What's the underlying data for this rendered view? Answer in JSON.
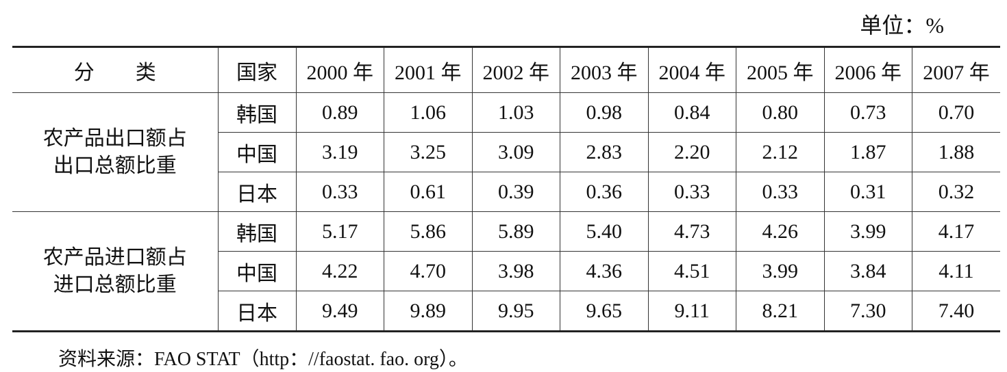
{
  "unit": "单位：%",
  "table": {
    "header": [
      "分　　类",
      "国家",
      "2000 年",
      "2001 年",
      "2002 年",
      "2003 年",
      "2004 年",
      "2005 年",
      "2006 年",
      "2007 年"
    ],
    "groups": [
      {
        "label": [
          "农产品出口额占",
          "出口总额比重"
        ],
        "rows": [
          {
            "country": "韩国",
            "values": [
              "0.89",
              "1.06",
              "1.03",
              "0.98",
              "0.84",
              "0.80",
              "0.73",
              "0.70"
            ]
          },
          {
            "country": "中国",
            "values": [
              "3.19",
              "3.25",
              "3.09",
              "2.83",
              "2.20",
              "2.12",
              "1.87",
              "1.88"
            ]
          },
          {
            "country": "日本",
            "values": [
              "0.33",
              "0.61",
              "0.39",
              "0.36",
              "0.33",
              "0.33",
              "0.31",
              "0.32"
            ]
          }
        ]
      },
      {
        "label": [
          "农产品进口额占",
          "进口总额比重"
        ],
        "rows": [
          {
            "country": "韩国",
            "values": [
              "5.17",
              "5.86",
              "5.89",
              "5.40",
              "4.73",
              "4.26",
              "3.99",
              "4.17"
            ]
          },
          {
            "country": "中国",
            "values": [
              "4.22",
              "4.70",
              "3.98",
              "4.36",
              "4.51",
              "3.99",
              "3.84",
              "4.11"
            ]
          },
          {
            "country": "日本",
            "values": [
              "9.49",
              "9.89",
              "9.95",
              "9.65",
              "9.11",
              "8.21",
              "7.30",
              "7.40"
            ]
          }
        ]
      }
    ]
  },
  "source": "资料来源：FAO STAT（http：//faostat. fao. org）。"
}
